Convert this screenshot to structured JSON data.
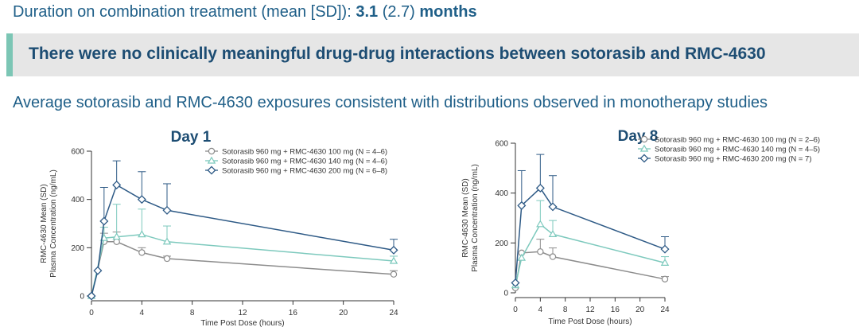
{
  "header": {
    "duration_label": "Duration on combination treatment (mean [SD]):",
    "duration_mean": "3.1",
    "duration_sd": "(2.7)",
    "duration_unit": "months"
  },
  "banner": {
    "text": "There were no clinically meaningful drug-drug interactions between sotorasib and RMC-4630"
  },
  "subheading": "Average sotorasib and RMC-4630 exposures consistent with distributions observed in monotherapy studies",
  "colors": {
    "gray": "#8c8c8c",
    "teal": "#7dc9bd",
    "navy": "#2e5a86",
    "text_blue": "#1f5f88",
    "banner_accent": "#7cc6b5"
  },
  "chart_data": [
    {
      "type": "line",
      "title": "Day 1",
      "xlabel": "Time Post Dose (hours)",
      "ylabel": [
        "RMC-4630 Mean (SD)",
        "Plasma Concentration (ng/mL)"
      ],
      "xlim": [
        0,
        24
      ],
      "ylim": [
        0,
        600
      ],
      "xticks": [
        0,
        4,
        8,
        12,
        16,
        20,
        24
      ],
      "yticks": [
        0,
        200,
        400,
        600
      ],
      "legend_position": "top-right",
      "series": [
        {
          "name": "Sotorasib 960 mg + RMC-4630 100 mg (N = 4–6)",
          "color": "#8c8c8c",
          "marker": "circle",
          "points": [
            [
              0,
              0
            ],
            [
              1,
              225
            ],
            [
              2,
              225
            ],
            [
              4,
              180
            ],
            [
              6,
              155
            ],
            [
              24,
              90
            ]
          ],
          "sd": [
            0,
            35,
            40,
            20,
            10,
            15
          ]
        },
        {
          "name": "Sotorasib 960 mg + RMC-4630 140 mg (N = 4–6)",
          "color": "#7dc9bd",
          "marker": "triangle",
          "points": [
            [
              0,
              0
            ],
            [
              1,
              240
            ],
            [
              2,
              245
            ],
            [
              4,
              255
            ],
            [
              6,
              225
            ],
            [
              24,
              145
            ]
          ],
          "sd": [
            0,
            45,
            135,
            105,
            65,
            20
          ]
        },
        {
          "name": "Sotorasib 960 mg + RMC-4630 200 mg (N = 6–8)",
          "color": "#2e5a86",
          "marker": "diamond",
          "points": [
            [
              0,
              0
            ],
            [
              0.5,
              105
            ],
            [
              1,
              310
            ],
            [
              2,
              460
            ],
            [
              4,
              400
            ],
            [
              6,
              355
            ],
            [
              24,
              190
            ]
          ],
          "sd": [
            0,
            0,
            140,
            100,
            115,
            110,
            45
          ]
        }
      ]
    },
    {
      "type": "line",
      "title": "Day 8",
      "xlabel": "Time Post Dose (hours)",
      "ylabel": [
        "RMC-4630 Mean (SD)",
        "Plasma Concentration (ng/mL)"
      ],
      "xlim": [
        0,
        24
      ],
      "ylim": [
        0,
        600
      ],
      "xticks": [
        0,
        4,
        8,
        12,
        16,
        20,
        24
      ],
      "yticks": [
        0,
        200,
        400,
        600
      ],
      "legend_position": "top-right",
      "series": [
        {
          "name": "Sotorasib 960 mg + RMC-4630 100 mg (N = 2–6)",
          "color": "#8c8c8c",
          "marker": "circle",
          "points": [
            [
              0,
              20
            ],
            [
              1,
              160
            ],
            [
              4,
              165
            ],
            [
              6,
              145
            ],
            [
              24,
              55
            ]
          ],
          "sd": [
            0,
            0,
            50,
            35,
            10
          ]
        },
        {
          "name": "Sotorasib 960 mg + RMC-4630 140 mg (N = 4–5)",
          "color": "#7dc9bd",
          "marker": "triangle",
          "points": [
            [
              0,
              30
            ],
            [
              1,
              140
            ],
            [
              4,
              275
            ],
            [
              6,
              235
            ],
            [
              24,
              120
            ]
          ],
          "sd": [
            0,
            0,
            95,
            55,
            25
          ]
        },
        {
          "name": "Sotorasib 960 mg + RMC-4630 200 mg (N = 7)",
          "color": "#2e5a86",
          "marker": "diamond",
          "points": [
            [
              0,
              40
            ],
            [
              1,
              350
            ],
            [
              4,
              420
            ],
            [
              6,
              345
            ],
            [
              24,
              175
            ]
          ],
          "sd": [
            0,
            140,
            135,
            125,
            50
          ]
        }
      ]
    }
  ]
}
